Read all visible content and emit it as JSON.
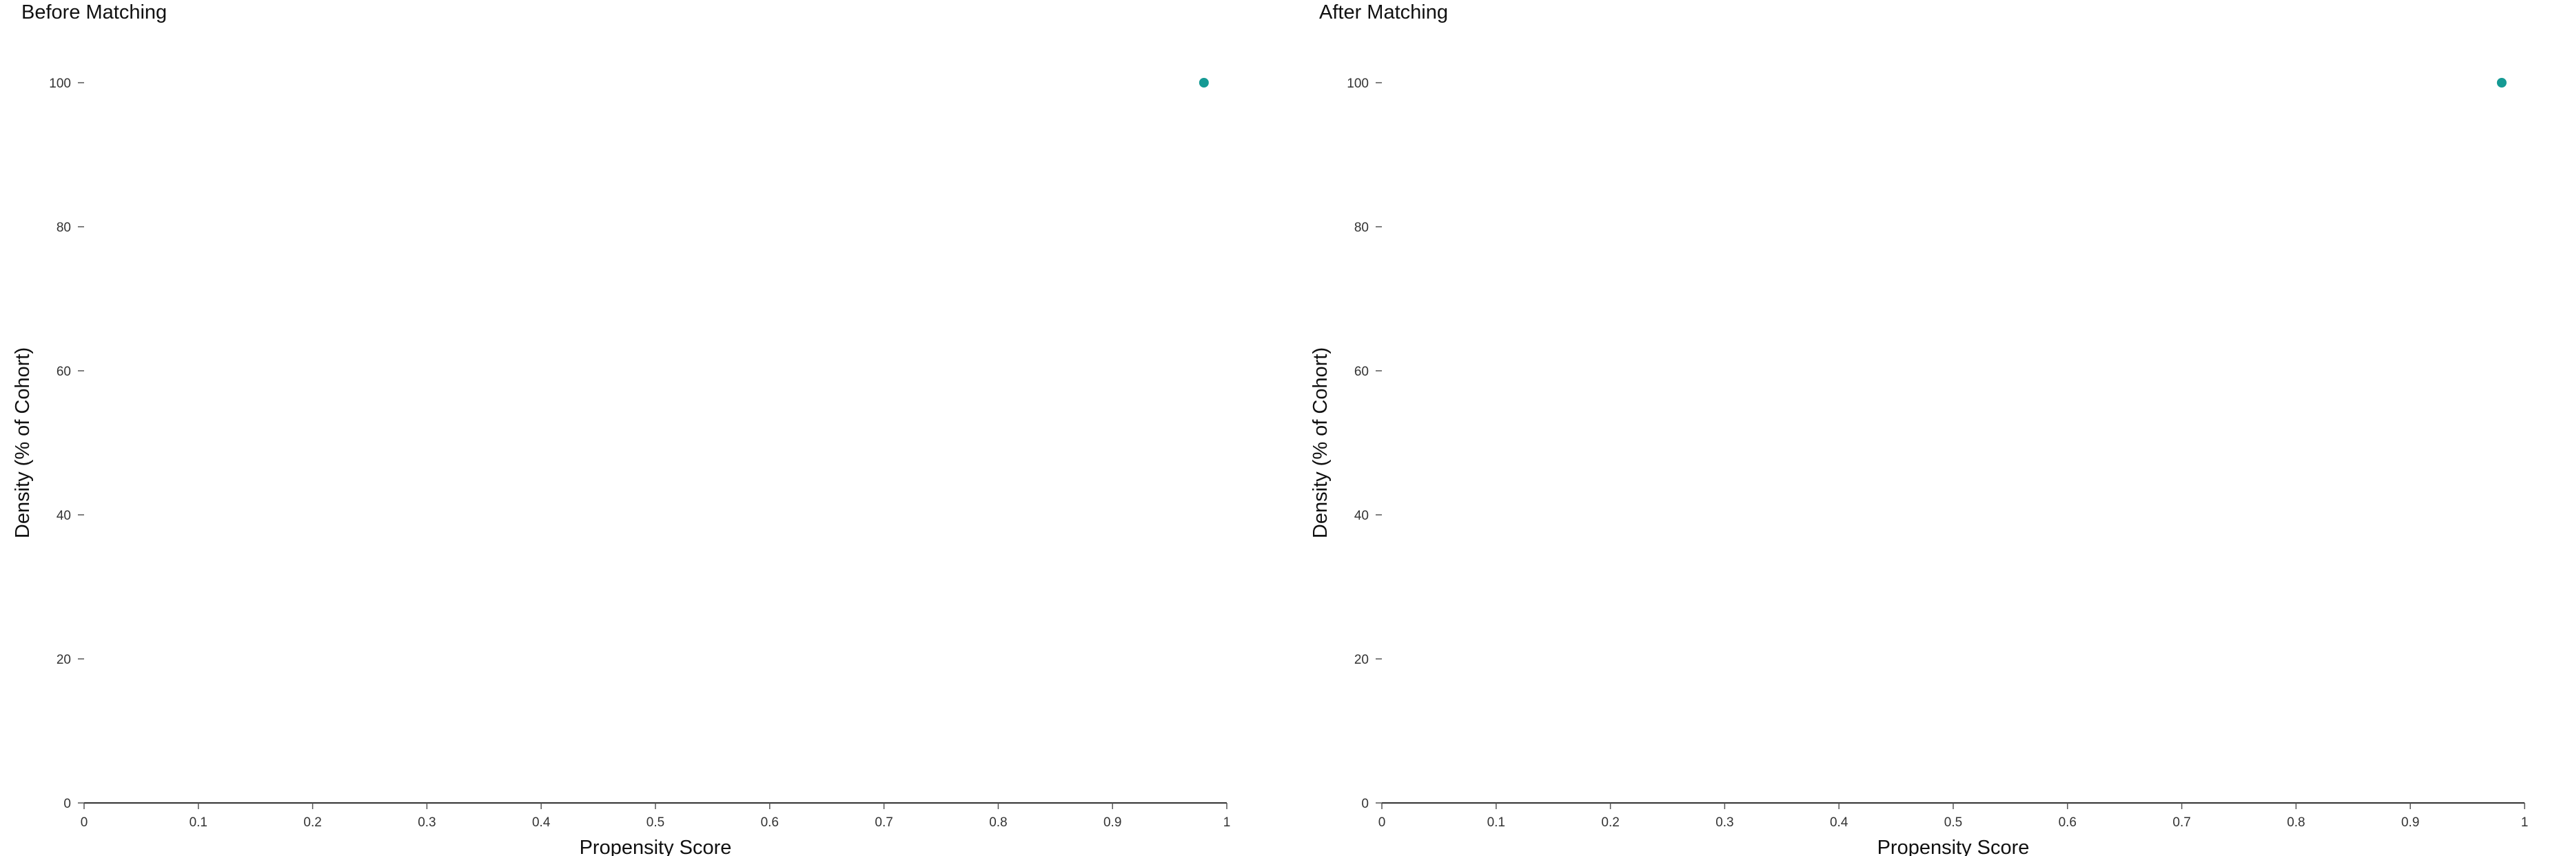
{
  "chart_data": [
    {
      "type": "scatter",
      "title": "Before Matching",
      "xlabel": "Propensity Score",
      "ylabel": "Density (% of Cohort)",
      "xlim": [
        0,
        1
      ],
      "ylim": [
        0,
        100
      ],
      "xticks": [
        "0",
        "0.1",
        "0.2",
        "0.3",
        "0.4",
        "0.5",
        "0.6",
        "0.7",
        "0.8",
        "0.9",
        "1"
      ],
      "yticks": [
        "0",
        "20",
        "40",
        "60",
        "80",
        "100"
      ],
      "grid": false,
      "series": [
        {
          "color": "#159a94",
          "points": [
            {
              "x": 0.98,
              "y": 100
            }
          ]
        }
      ]
    },
    {
      "type": "scatter",
      "title": "After Matching",
      "xlabel": "Propensity Score",
      "ylabel": "Density (% of Cohort)",
      "xlim": [
        0,
        1
      ],
      "ylim": [
        0,
        100
      ],
      "xticks": [
        "0",
        "0.1",
        "0.2",
        "0.3",
        "0.4",
        "0.5",
        "0.6",
        "0.7",
        "0.8",
        "0.9",
        "1"
      ],
      "yticks": [
        "0",
        "20",
        "40",
        "60",
        "80",
        "100"
      ],
      "grid": false,
      "series": [
        {
          "color": "#159a94",
          "points": [
            {
              "x": 0.98,
              "y": 100
            }
          ]
        }
      ]
    }
  ]
}
